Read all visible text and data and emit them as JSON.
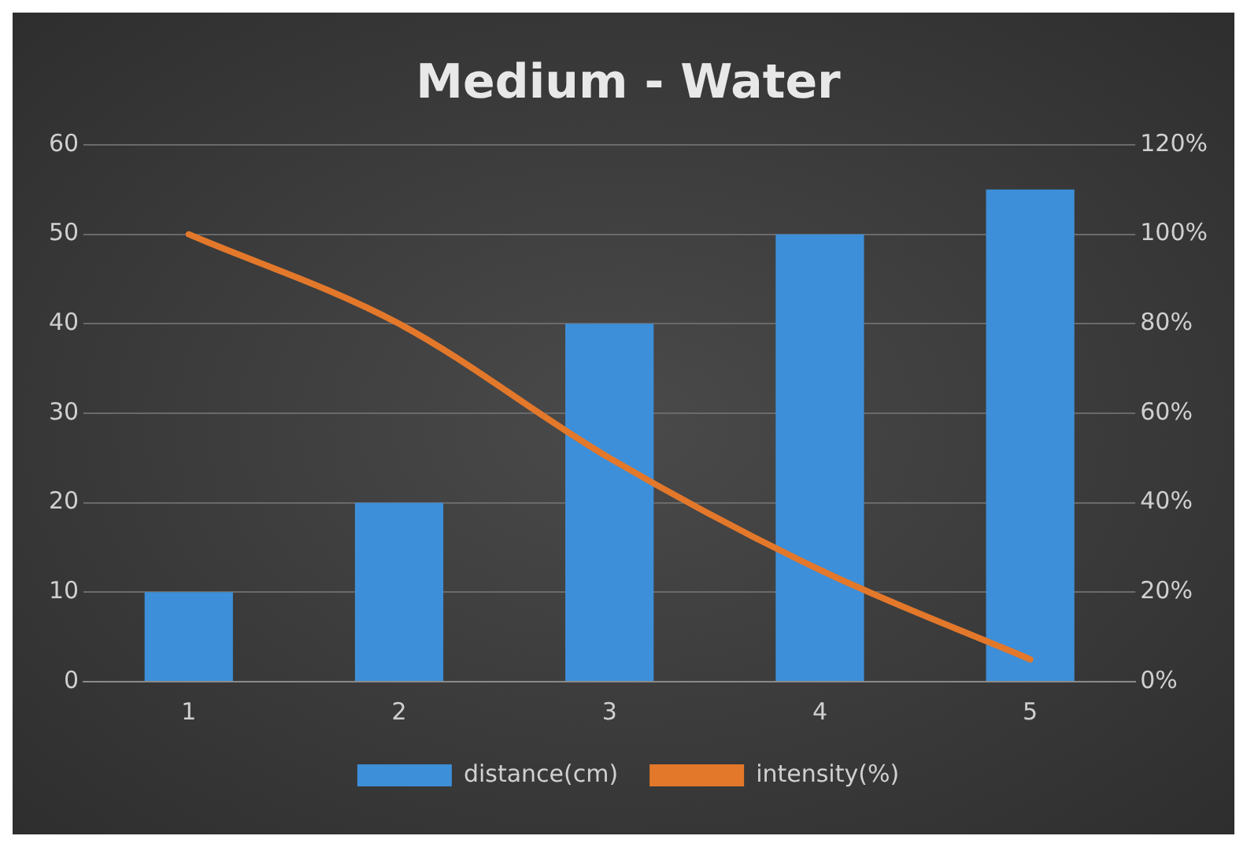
{
  "chart_data": {
    "type": "bar",
    "title": "Medium - Water",
    "categories": [
      "1",
      "2",
      "3",
      "4",
      "5"
    ],
    "series": [
      {
        "name": "distance(cm)",
        "color": "#3d8fd9",
        "values": [
          10,
          20,
          40,
          50,
          55
        ]
      },
      {
        "name": "intensity(%)",
        "type": "line",
        "axis": "y2",
        "color": "#e3782b",
        "values": [
          100,
          80,
          50,
          25,
          5
        ]
      }
    ],
    "ylim": [
      0,
      60
    ],
    "yticks": [
      0,
      10,
      20,
      30,
      40,
      50,
      60
    ],
    "y2lim": [
      0,
      120
    ],
    "y2ticks": [
      {
        "value": 0,
        "label": "0%"
      },
      {
        "value": 20,
        "label": "20%"
      },
      {
        "value": 40,
        "label": "40%"
      },
      {
        "value": 60,
        "label": "60%"
      },
      {
        "value": 80,
        "label": "80%"
      },
      {
        "value": 100,
        "label": "100%"
      },
      {
        "value": 120,
        "label": "120%"
      }
    ],
    "grid": "y",
    "legend": "bottom",
    "marker": "none"
  }
}
